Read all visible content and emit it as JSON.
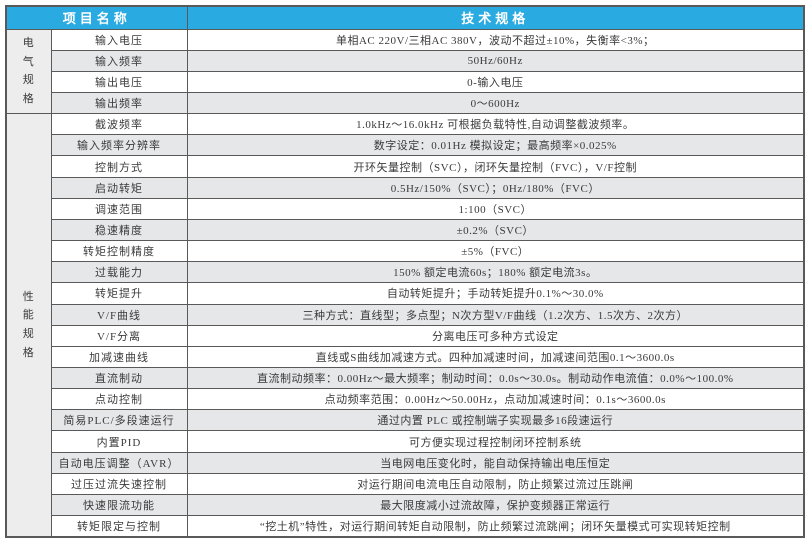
{
  "colors": {
    "header_bg": "#29abe2",
    "header_text": "#ffffff",
    "row_shaded": "#e6e7e8",
    "row_plain": "#ffffff",
    "group_bg": "#ededed",
    "border": "#595959",
    "text": "#3a3a3a"
  },
  "table": {
    "headers": {
      "item": "项目名称",
      "spec": "技术规格"
    },
    "groups": [
      {
        "label": "电气规格",
        "row_count": 4
      },
      {
        "label": "性能规格",
        "row_count": 20
      }
    ],
    "rows": [
      {
        "label": "输入电压",
        "value": "单相AC 220V/三相AC 380V，波动不超过±10%，失衡率<3%；",
        "shaded": false
      },
      {
        "label": "输入频率",
        "value": "50Hz/60Hz",
        "shaded": true
      },
      {
        "label": "输出电压",
        "value": "0-输入电压",
        "shaded": false
      },
      {
        "label": "输出频率",
        "value": "0～600Hz",
        "shaded": true
      },
      {
        "label": "截波频率",
        "value": "1.0kHz～16.0kHz 可根据负载特性,自动调整截波频率。",
        "shaded": false
      },
      {
        "label": "输入频率分辨率",
        "value": "数字设定：0.01Hz 模拟设定；最高频率×0.025%",
        "shaded": true
      },
      {
        "label": "控制方式",
        "value": "开环矢量控制（SVC），闭环矢量控制（FVC），V/F控制",
        "shaded": false
      },
      {
        "label": "启动转矩",
        "value": "0.5Hz/150%（SVC）；0Hz/180%（FVC）",
        "shaded": true
      },
      {
        "label": "调速范围",
        "value": "1:100（SVC）",
        "shaded": false
      },
      {
        "label": "稳速精度",
        "value": "±0.2%（SVC）",
        "shaded": true
      },
      {
        "label": "转矩控制精度",
        "value": "±5%（FVC）",
        "shaded": false
      },
      {
        "label": "过载能力",
        "value": "150% 额定电流60s；180% 额定电流3s。",
        "shaded": true
      },
      {
        "label": "转矩提升",
        "value": "自动转矩提升；手动转矩提升0.1%～30.0%",
        "shaded": false
      },
      {
        "label": "V/F曲线",
        "value": "三种方式：直线型；多点型；N次方型V/F曲线（1.2次方、1.5次方、2次方）",
        "shaded": true
      },
      {
        "label": "V/F分离",
        "value": "分离电压可多种方式设定",
        "shaded": false
      },
      {
        "label": "加减速曲线",
        "value": "直线或S曲线加减速方式。四种加减速时间，加减速间范围0.1～3600.0s",
        "shaded": false
      },
      {
        "label": "直流制动",
        "value": "直流制动频率：0.00Hz～最大频率；制动时间：0.0s～30.0s。制动动作电流值：0.0%～100.0%",
        "shaded": true
      },
      {
        "label": "点动控制",
        "value": "点动频率范围：0.00Hz～50.00Hz，点动加减速时间：0.1s～3600.0s",
        "shaded": false
      },
      {
        "label": "简易PLC/多段速运行",
        "value": "通过内置 PLC 或控制端子实现最多16段速运行",
        "shaded": true
      },
      {
        "label": "内置PID",
        "value": "可方便实现过程控制闭环控制系统",
        "shaded": false
      },
      {
        "label": "自动电压调整（AVR）",
        "value": "当电网电压变化时，能自动保持输出电压恒定",
        "shaded": true
      },
      {
        "label": "过压过流失速控制",
        "value": "对运行期间电流电压自动限制，防止频繁过流过压跳闸",
        "shaded": false
      },
      {
        "label": "快速限流功能",
        "value": "最大限度减小过流故障，保护变频器正常运行",
        "shaded": true
      },
      {
        "label": "转矩限定与控制",
        "value": "“挖土机”特性，对运行期间转矩自动限制，防止频繁过流跳闸；闭环矢量模式可实现转矩控制",
        "shaded": false
      }
    ]
  }
}
